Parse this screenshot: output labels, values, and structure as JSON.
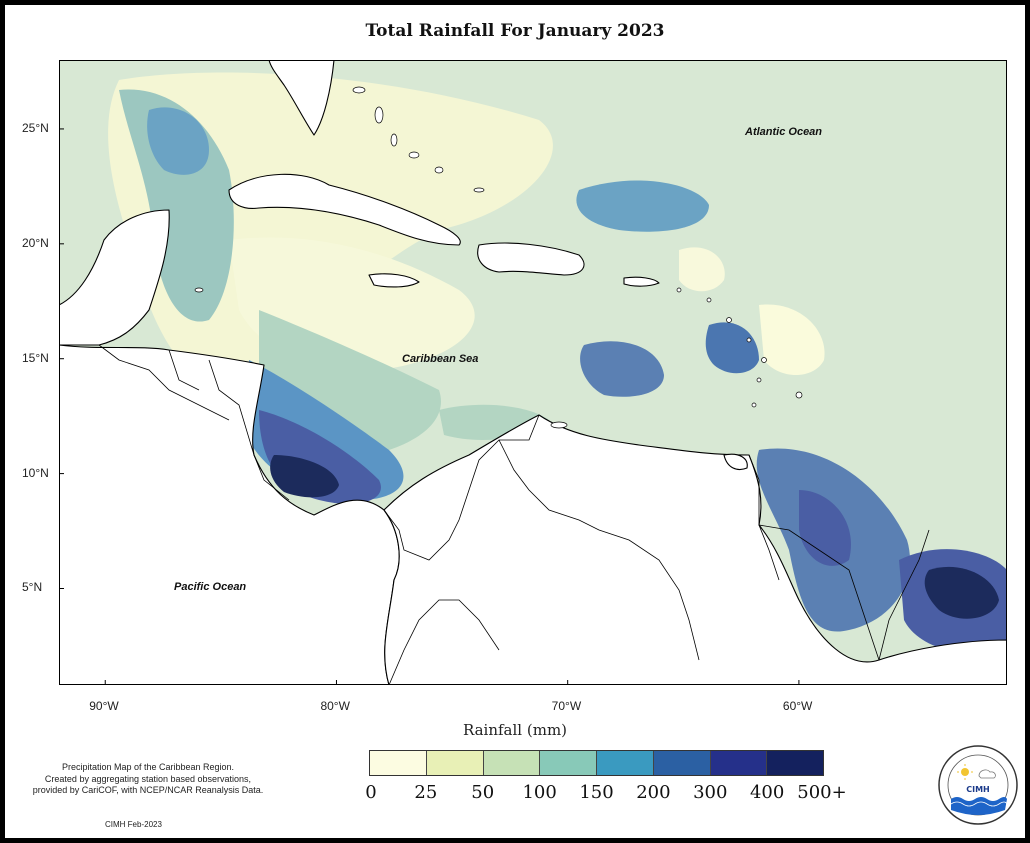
{
  "title": "Total Rainfall For January 2023",
  "axes": {
    "lat_labels": [
      "25°N",
      "20°N",
      "15°N",
      "10°N",
      "5°N"
    ],
    "lon_labels": [
      "90°W",
      "80°W",
      "70°W",
      "60°W"
    ],
    "lat_values": [
      25,
      20,
      15,
      10,
      5
    ],
    "lon_values": [
      -90,
      -80,
      -70,
      -60
    ],
    "lat_range": [
      0.8,
      28
    ],
    "lon_range": [
      -92,
      -51
    ]
  },
  "map_labels": {
    "atlantic": "Atlantic Ocean",
    "caribbean": "Caribbean Sea",
    "pacific": "Pacific Ocean"
  },
  "legend": {
    "title": "Rainfall (mm)",
    "breaks": [
      "0",
      "25",
      "50",
      "100",
      "150",
      "200",
      "300",
      "400",
      "500+"
    ],
    "colors": [
      "#fcfce1",
      "#e8f0b6",
      "#c6e1b6",
      "#88c9b8",
      "#3a9ac0",
      "#2b60a3",
      "#25308a",
      "#14215e"
    ]
  },
  "note": {
    "line1": "Precipitation Map of the Caribbean Region.",
    "line2": "Created by aggregating station based observations,",
    "line3": "provided by CariCOF, with NCEP/NCAR Reanalysis Data."
  },
  "credit": "CIMH Feb-2023",
  "logo": {
    "text": "CIMH",
    "ring_text": "Caribbean Institute for Meteorology and Hydrology"
  },
  "colors": {
    "land": "#ffffff",
    "coast": "#000000"
  }
}
